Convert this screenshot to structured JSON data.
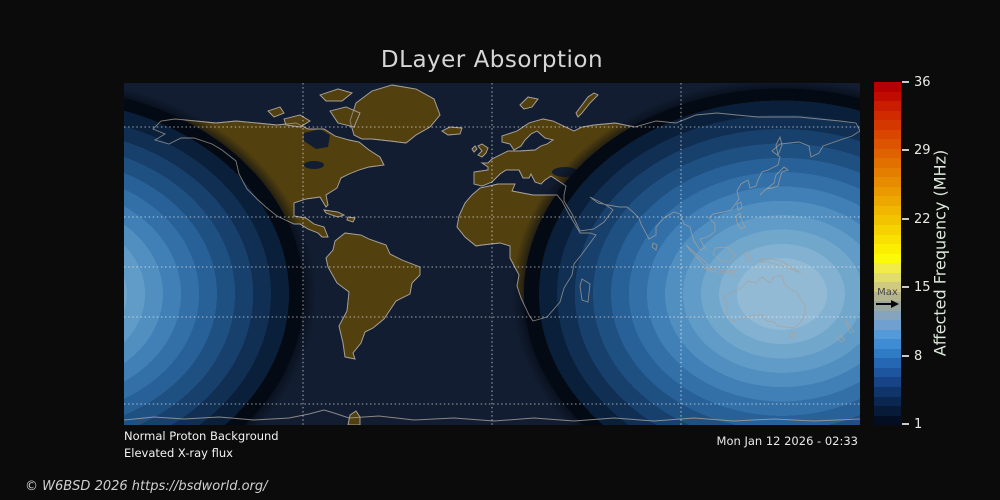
{
  "title": "DLayer Absorption",
  "colorbar": {
    "axis_label": "Affected Frequency (MHz)",
    "ticks": [
      "36",
      "29",
      "22",
      "15",
      "8",
      "1"
    ],
    "max_label": "Max",
    "colors": [
      "#b40000",
      "#c00c00",
      "#ca1c00",
      "#d02a00",
      "#d43800",
      "#d84600",
      "#dc5400",
      "#de6200",
      "#e17000",
      "#e47e00",
      "#e78c00",
      "#ea9a00",
      "#eda800",
      "#f0b600",
      "#f2c400",
      "#f5d200",
      "#f8e000",
      "#fbee00",
      "#fdfa06",
      "#f1ec4a",
      "#e2dc6c",
      "#cfca7e",
      "#b4b48e",
      "#9aa8a2",
      "#86a4be",
      "#6fa0d0",
      "#539ad8",
      "#3f8cd2",
      "#2f7cc4",
      "#2567b2",
      "#1d559e",
      "#164486",
      "#10356a",
      "#0b2650",
      "#071a38",
      "#040e22"
    ]
  },
  "status": {
    "line1": "Normal Proton Background",
    "line2": "Elevated X-ray flux"
  },
  "timestamp": "Mon Jan 12 2026 - 02:33",
  "footer": "© W6BSD 2026 https://bsdworld.org/",
  "chart_data": {
    "type": "heatmap",
    "title": "DLayer Absorption",
    "colorbar_label": "Affected Frequency (MHz)",
    "colorbar_range_mhz": [
      1,
      36
    ],
    "colorbar_ticks_mhz": [
      36,
      29,
      22,
      15,
      8,
      1
    ],
    "current_max_marker_mhz": 13.5,
    "description": "World map (equirectangular) of D-layer radio absorption; daylit region centered near Australia (~142E, 22S) shows concentric absorption contours from ~13.5 MHz max at subsolar point down to 1 MHz near the terminator; night side (Americas, Europe, Africa) shows no absorption",
    "subsolar_center_lonlat": [
      142,
      -21.6
    ],
    "proton_background": "Normal Proton Background",
    "xray_flux": "Elevated X-ray flux",
    "time": "Mon Jan 12 2026 - 02:33",
    "legend_position": "right colorbar",
    "grid": true
  },
  "colors": {
    "ocean": "#121d31",
    "land": "#52400e",
    "coastline": "#a8a29a",
    "day_center": "#92bad5",
    "terminator": "#040a14",
    "background": "#0b0b0b"
  }
}
